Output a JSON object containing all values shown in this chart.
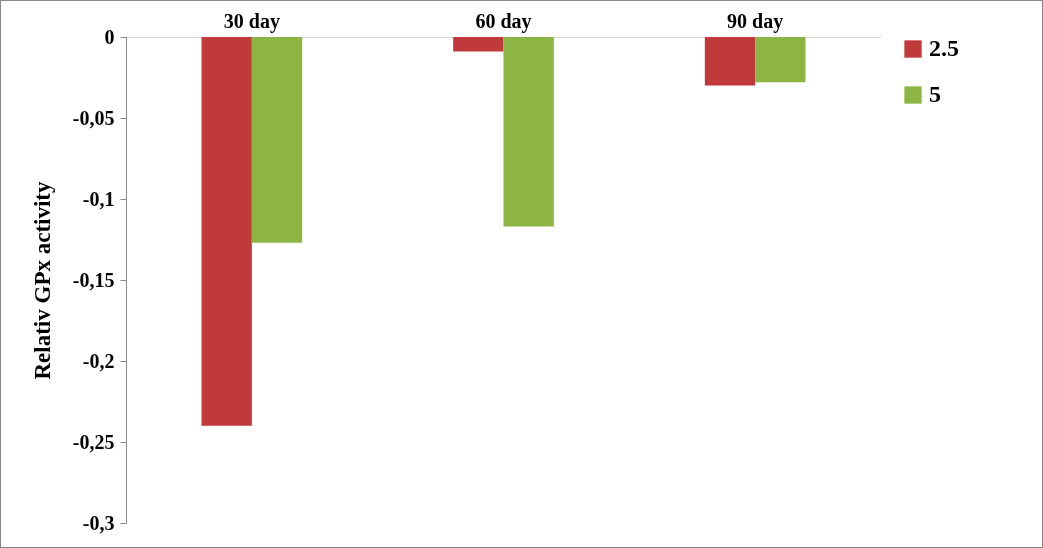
{
  "chart_data": {
    "type": "bar",
    "ylabel": "Relativ GPx activity",
    "categories": [
      "30 day",
      "60 day",
      "90 day"
    ],
    "series": [
      {
        "name": "2.5",
        "color": "#c0393b",
        "values": [
          -0.24,
          -0.009,
          -0.03
        ]
      },
      {
        "name": "5",
        "color": "#8db543",
        "values": [
          -0.127,
          -0.117,
          -0.028
        ]
      }
    ],
    "ylim": [
      -0.3,
      0
    ],
    "yticks": [
      {
        "value": -0.3,
        "label": "-0,3"
      },
      {
        "value": -0.25,
        "label": "-0,25"
      },
      {
        "value": -0.2,
        "label": "-0,2"
      },
      {
        "value": -0.15,
        "label": "-0,15"
      },
      {
        "value": -0.1,
        "label": "-0,1"
      },
      {
        "value": -0.05,
        "label": "-0,05"
      },
      0
    ],
    "grid": false,
    "legend": "right"
  }
}
